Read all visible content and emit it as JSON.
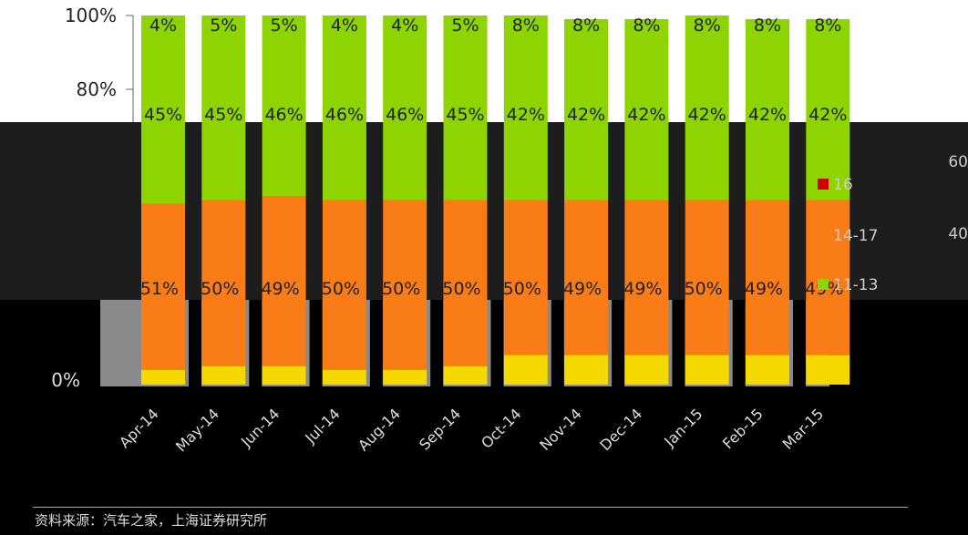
{
  "chart_data": {
    "type": "bar",
    "stacked": true,
    "percent": true,
    "categories": [
      "Apr-14",
      "May-14",
      "Jun-14",
      "Jul-14",
      "Aug-14",
      "Sep-14",
      "Oct-14",
      "Nov-14",
      "Dec-14",
      "Jan-15",
      "Feb-15",
      "Mar-15"
    ],
    "series": [
      {
        "name": "",
        "values": [
          4,
          5,
          5,
          4,
          4,
          5,
          8,
          8,
          8,
          8,
          8,
          8
        ],
        "color": "#F5D800"
      },
      {
        "name": "",
        "values": [
          45,
          45,
          46,
          46,
          46,
          45,
          42,
          42,
          42,
          42,
          42,
          42
        ],
        "color": "#F97C16"
      },
      {
        "name": "",
        "values": [
          51,
          50,
          49,
          50,
          50,
          50,
          50,
          49,
          49,
          50,
          49,
          49
        ],
        "color": "#8DD400"
      }
    ],
    "top_labels": [
      "4%",
      "5%",
      "5%",
      "4%",
      "4%",
      "5%",
      "8%",
      "8%",
      "8%",
      "8%",
      "8%",
      "8%"
    ],
    "mid_labels": [
      "45%",
      "45%",
      "46%",
      "46%",
      "46%",
      "45%",
      "42%",
      "42%",
      "42%",
      "42%",
      "42%",
      "42%"
    ],
    "bottom_labels": [
      "51%",
      "50%",
      "49%",
      "50%",
      "50%",
      "50%",
      "50%",
      "49%",
      "49%",
      "50%",
      "49%",
      "49%"
    ],
    "y_ticks": [
      "100%",
      "80%",
      "0%"
    ],
    "ylim": [
      0,
      100
    ],
    "legend": [
      "16",
      "14-17",
      "11-13"
    ],
    "right_ticks": [
      "60",
      "40"
    ],
    "source": "资料来源：汽车之家，上海证券研究所"
  },
  "colors": {
    "background": "#000000",
    "gray_band": "#8a8a8a",
    "dark_band": "#2a2a2a"
  }
}
